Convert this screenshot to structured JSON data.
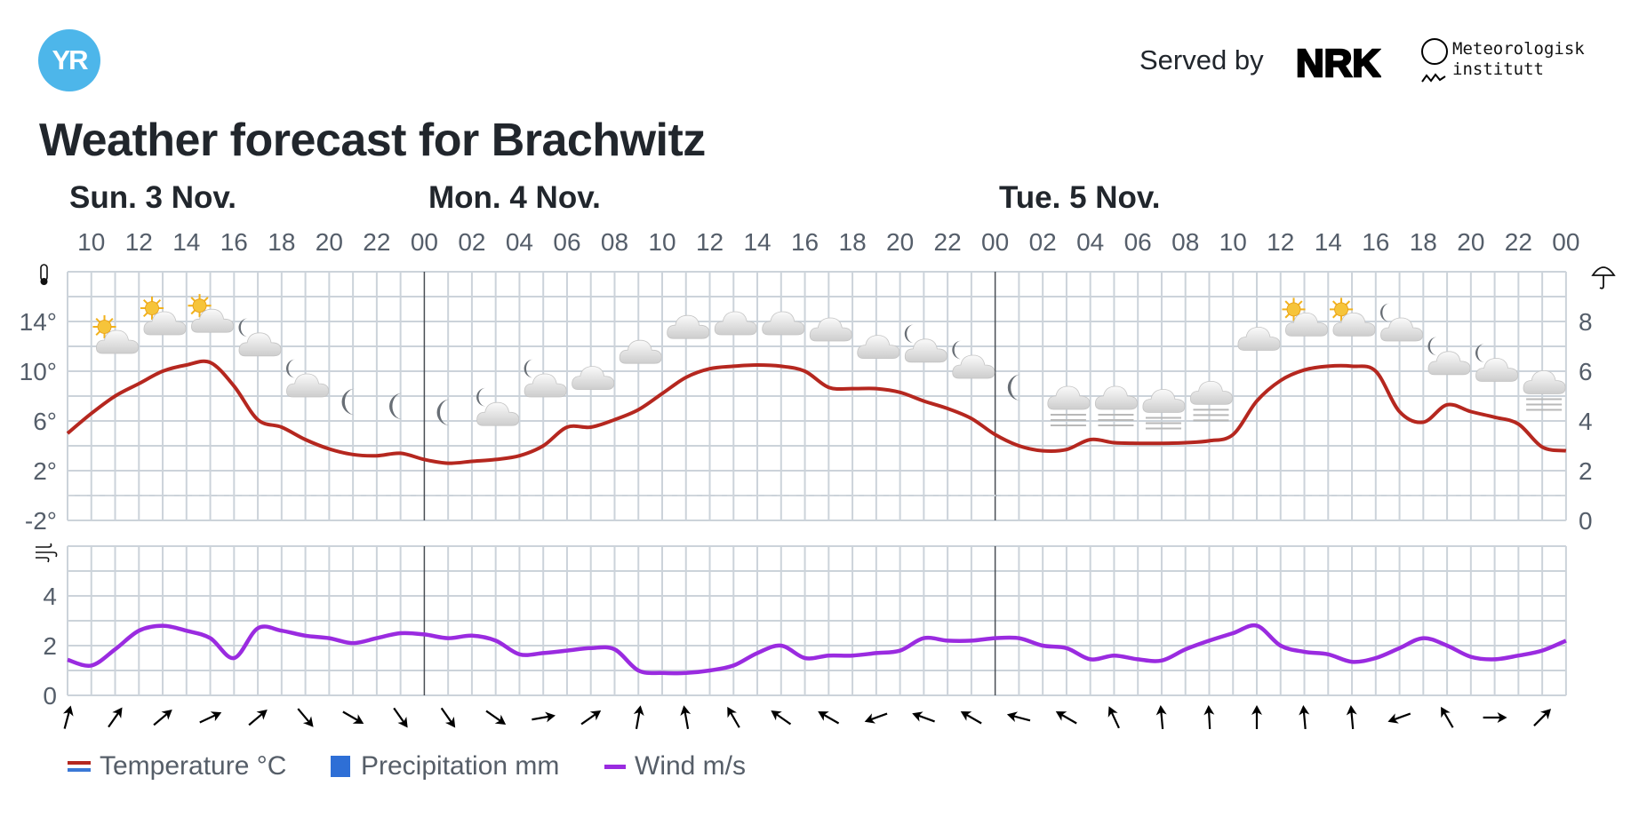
{
  "header": {
    "logo_text": "YR",
    "served_by": "Served by",
    "nrk_logo_text": "NRK",
    "met_line1": "Meteorologisk",
    "met_line2": "institutt"
  },
  "title": "Weather forecast for Brachwitz",
  "days": [
    "Sun. 3 Nov.",
    "Mon. 4 Nov.",
    "Tue. 5 Nov."
  ],
  "legend": {
    "temperature": "Temperature °C",
    "precipitation": "Precipitation mm",
    "wind": "Wind m/s"
  },
  "colors": {
    "temperature": "#b5271f",
    "precipitation": "#2e6fd6",
    "wind": "#9a2be0",
    "grid": "#ccd3da",
    "logo": "#4db6ea"
  },
  "chart_data": {
    "type": "line",
    "hour_labels": [
      "10",
      "12",
      "14",
      "16",
      "18",
      "20",
      "22",
      "00",
      "02",
      "04",
      "06",
      "08",
      "10",
      "12",
      "14",
      "16",
      "18",
      "20",
      "22",
      "00",
      "02",
      "04",
      "06",
      "08",
      "10",
      "12",
      "14",
      "16",
      "18",
      "20",
      "22",
      "00"
    ],
    "hours_start": "09",
    "temperature": {
      "name": "Temperature °C",
      "ylim": [
        -2,
        18
      ],
      "ticks": [
        "14°",
        "10°",
        "6°",
        "2°",
        "-2°"
      ],
      "tick_values": [
        14,
        10,
        6,
        2,
        -2
      ],
      "values": [
        5.0,
        6.6,
        8.0,
        9.0,
        10.0,
        10.5,
        10.7,
        8.8,
        6.1,
        5.5,
        4.5,
        3.75,
        3.3,
        3.2,
        3.4,
        2.9,
        2.6,
        2.75,
        2.9,
        3.2,
        4.0,
        5.5,
        5.5,
        6.1,
        6.9,
        8.2,
        9.5,
        10.2,
        10.4,
        10.5,
        10.4,
        10.0,
        8.7,
        8.6,
        8.6,
        8.3,
        7.6,
        7.0,
        6.2,
        4.9,
        4.0,
        3.6,
        3.7,
        4.5,
        4.25,
        4.2,
        4.2,
        4.25,
        4.4,
        4.9,
        7.6,
        9.25,
        10.1,
        10.4,
        10.4,
        10.0,
        6.75,
        5.9,
        7.3,
        6.75,
        6.3,
        5.75,
        3.9,
        3.6
      ]
    },
    "precipitation": {
      "name": "Precipitation mm",
      "ylim": [
        0,
        10
      ],
      "ticks": [
        "8",
        "6",
        "4",
        "2",
        "0"
      ],
      "tick_values": [
        8,
        6,
        4,
        2,
        0
      ],
      "values": []
    },
    "wind": {
      "name": "Wind m/s",
      "ylim": [
        0,
        6
      ],
      "ticks": [
        "4",
        "2",
        "0"
      ],
      "tick_values": [
        4,
        2,
        0
      ],
      "values": [
        1.43,
        1.2,
        1.85,
        2.6,
        2.8,
        2.6,
        2.3,
        1.5,
        2.7,
        2.6,
        2.4,
        2.3,
        2.1,
        2.3,
        2.5,
        2.45,
        2.3,
        2.4,
        2.2,
        1.65,
        1.7,
        1.8,
        1.9,
        1.85,
        1.0,
        0.9,
        0.9,
        1.0,
        1.2,
        1.7,
        2.0,
        1.5,
        1.6,
        1.6,
        1.7,
        1.8,
        2.3,
        2.2,
        2.2,
        2.3,
        2.3,
        2.0,
        1.9,
        1.45,
        1.6,
        1.45,
        1.4,
        1.85,
        2.2,
        2.5,
        2.8,
        2.0,
        1.75,
        1.65,
        1.35,
        1.5,
        1.9,
        2.3,
        2.0,
        1.55,
        1.45,
        1.6,
        1.8,
        2.2
      ]
    },
    "wind_direction_every_2h_deg": [
      15,
      35,
      50,
      65,
      50,
      140,
      120,
      145,
      145,
      125,
      80,
      55,
      10,
      350,
      330,
      305,
      300,
      250,
      290,
      300,
      285,
      300,
      335,
      355,
      357,
      0,
      355,
      355,
      250,
      330,
      90,
      45
    ],
    "weather_symbols_every_2h_from_11": [
      "partly-sunny",
      "partly-sunny",
      "partly-sunny",
      "night-partly-cloudy",
      "night-partly-cloudy",
      "clear-night",
      "clear-night",
      "clear-night",
      "night-partly-cloudy",
      "night-partly-cloudy",
      "cloudy",
      "cloudy",
      "cloudy",
      "cloudy",
      "cloudy",
      "cloudy",
      "cloudy",
      "night-partly-cloudy",
      "night-partly-cloudy",
      "clear-night",
      "fog",
      "fog",
      "fog",
      "fog",
      "cloudy",
      "partly-sunny",
      "partly-sunny",
      "night-partly-cloudy",
      "night-partly-cloudy",
      "night-partly-cloudy",
      "fog"
    ]
  }
}
